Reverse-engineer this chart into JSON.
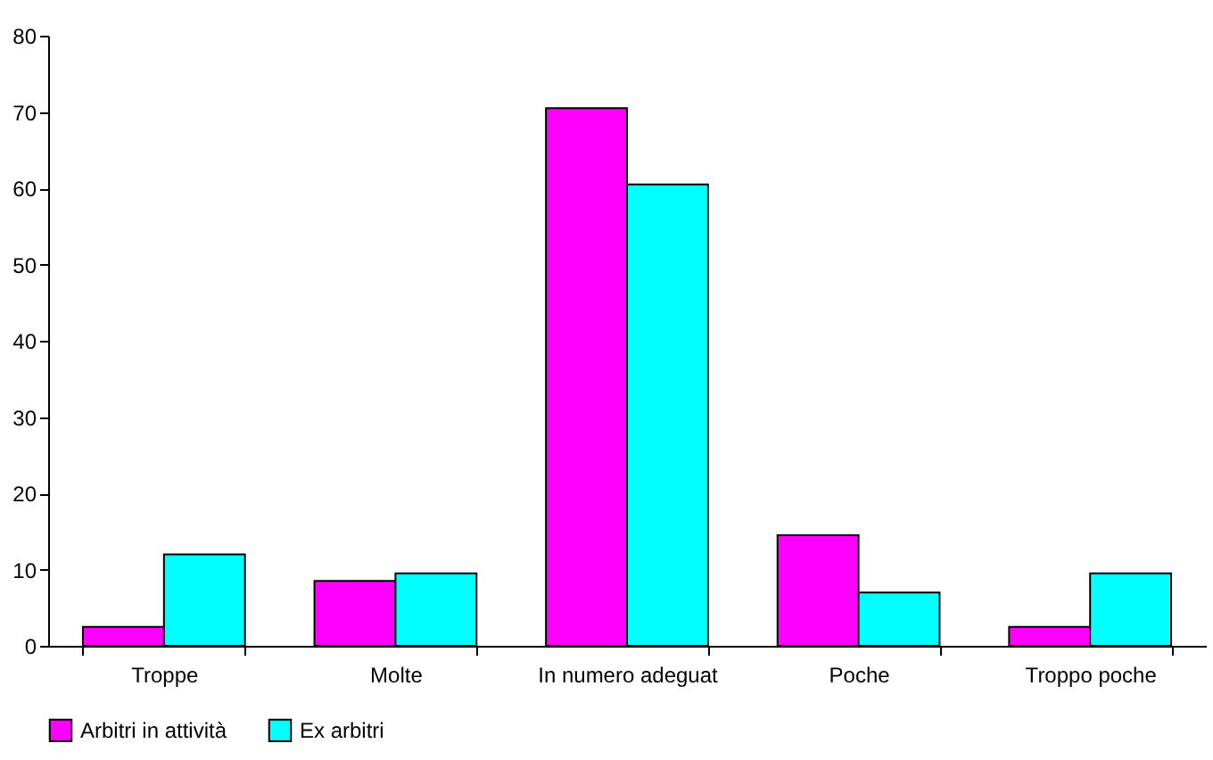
{
  "chart_data": {
    "type": "bar",
    "categories": [
      "Troppe",
      "Molte",
      "In numero adeguat",
      "Poche",
      "Troppo poche"
    ],
    "series": [
      {
        "name": "Arbitri in attività",
        "color": "#ff00ff",
        "values": [
          2.5,
          8.5,
          70.5,
          14.5,
          2.5
        ]
      },
      {
        "name": "Ex arbitri",
        "color": "#00ffff",
        "values": [
          12,
          9.5,
          60.5,
          7,
          9.5
        ]
      }
    ],
    "ylim": [
      0,
      80
    ],
    "yticks": [
      0,
      10,
      20,
      30,
      40,
      50,
      60,
      70,
      80
    ],
    "grid": false,
    "legend": "bottom"
  }
}
